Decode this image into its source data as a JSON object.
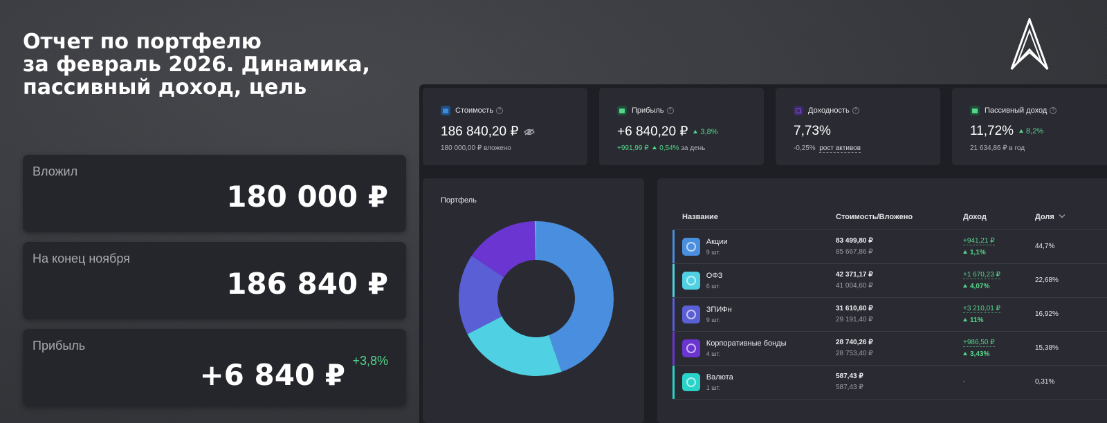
{
  "headline": {
    "line1": "Отчет по портфелю",
    "line2": "за февраль 2026. Динамика,",
    "line3": "пассивный доход, цель"
  },
  "stats": [
    {
      "label": "Вложил",
      "value": "180 000 ₽"
    },
    {
      "label": "На конец ноября",
      "value": "186 840 ₽"
    },
    {
      "label": "Прибыль",
      "value": "+6 840 ₽",
      "badge": "+3,8%"
    }
  ],
  "cards": {
    "cost": {
      "title": "Стоимость",
      "value": "186 840,20 ₽",
      "sub": "180 000,00 ₽ вложено",
      "icon": "wallet-icon",
      "color": "#3d8bd9"
    },
    "profit": {
      "title": "Прибыль",
      "value": "+6 840,20 ₽",
      "delta": "3,8%",
      "sub_green": "+991,99 ₽",
      "sub_delta": "0,54%",
      "sub_text": "за день",
      "icon": "chart-icon",
      "color": "#55d68b"
    },
    "yield": {
      "title": "Доходность",
      "value": "7,73%",
      "sub_prefix": "-0,25%",
      "sub_link": "рост активов",
      "icon": "calendar-icon",
      "color": "#8d5be0"
    },
    "passive": {
      "title": "Пассивный доход",
      "value": "11,72%",
      "delta": "8,2%",
      "sub": "21 634,86 ₽ в год",
      "icon": "home-icon",
      "color": "#55d68b"
    }
  },
  "portfolio": {
    "title": "Портфель"
  },
  "table": {
    "headers": {
      "name": "Название",
      "cost": "Стоимость/Вложено",
      "income": "Доход",
      "share": "Доля"
    },
    "rows": [
      {
        "name": "Акции",
        "count": "9 шт.",
        "cost": "83 499,80 ₽",
        "invested": "85 667,86 ₽",
        "income": "+941,21 ₽",
        "income_pct": "1,1%",
        "share": "44,7%",
        "color": "#4a8fdf"
      },
      {
        "name": "ОФЗ",
        "count": "6 шт.",
        "cost": "42 371,17 ₽",
        "invested": "41 004,60 ₽",
        "income": "+1 670,23 ₽",
        "income_pct": "4,07%",
        "share": "22,68%",
        "color": "#4fd1e3"
      },
      {
        "name": "ЗПИФн",
        "count": "9 шт.",
        "cost": "31 610,60 ₽",
        "invested": "29 191,40 ₽",
        "income": "+3 210,01 ₽",
        "income_pct": "11%",
        "share": "16,92%",
        "color": "#5a5fd6"
      },
      {
        "name": "Корпоративные бонды",
        "count": "4 шт.",
        "cost": "28 740,26 ₽",
        "invested": "28 753,40 ₽",
        "income": "+986,50 ₽",
        "income_pct": "3,43%",
        "share": "15,38%",
        "color": "#6a35d0"
      },
      {
        "name": "Валюта",
        "count": "1 шт.",
        "cost": "587,43 ₽",
        "invested": "587,43 ₽",
        "income": "-",
        "income_pct": "",
        "share": "0,31%",
        "color": "#2ad3c9"
      }
    ]
  },
  "chart_data": {
    "type": "pie",
    "categories": [
      "Акции",
      "ОФЗ",
      "ЗПИФн",
      "Корпоративные бонды",
      "Валюта"
    ],
    "values": [
      44.7,
      22.68,
      16.92,
      15.38,
      0.31
    ],
    "colors": [
      "#4a8fdf",
      "#4fd1e3",
      "#5a5fd6",
      "#6a35d0",
      "#2ad3c9"
    ],
    "title": "Портфель"
  }
}
